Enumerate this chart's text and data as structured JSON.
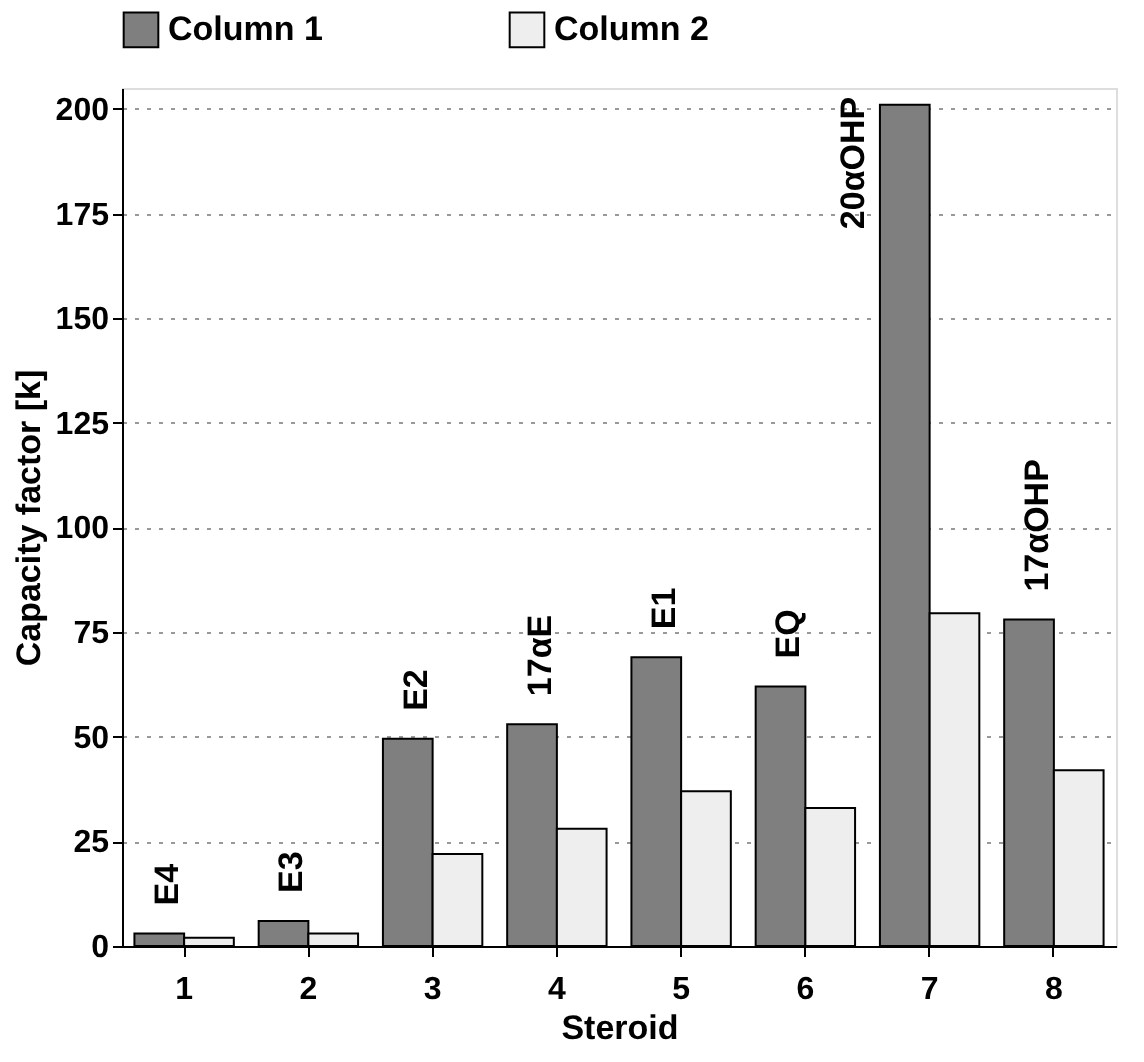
{
  "chart_data": {
    "type": "bar",
    "xlabel": "Steroid",
    "ylabel": "Capacity factor [k]",
    "categories": [
      "1",
      "2",
      "3",
      "4",
      "5",
      "6",
      "7",
      "8"
    ],
    "series": [
      {
        "name": "Column 1",
        "color": "#7f7f7f",
        "values": [
          3,
          6,
          49.5,
          53,
          69,
          62,
          201,
          78
        ]
      },
      {
        "name": "Column 2",
        "color": "#eeeeee",
        "values": [
          2,
          3,
          22,
          28,
          37,
          33,
          79.5,
          42
        ]
      }
    ],
    "ylim": [
      0,
      205
    ],
    "yticks": [
      0,
      25,
      50,
      75,
      100,
      125,
      150,
      175,
      200
    ],
    "grid": "y",
    "legend": "top",
    "annotations": [
      "E4",
      "E3",
      "E2",
      "17αE",
      "E1",
      "EQ",
      "20αOHP",
      "17αOHP"
    ]
  }
}
